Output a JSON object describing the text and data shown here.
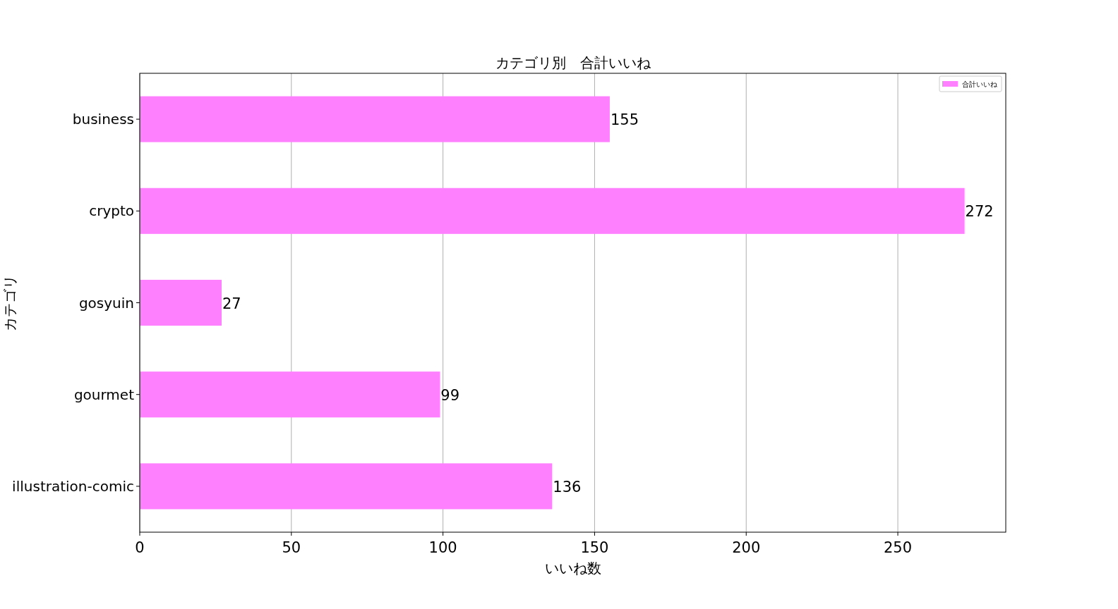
{
  "chart_data": {
    "type": "bar",
    "orientation": "horizontal",
    "title": "カテゴリ別　合計いいね",
    "xlabel": "いいね数",
    "ylabel": "カテゴリ",
    "categories": [
      "business",
      "crypto",
      "gosyuin",
      "gourmet",
      "illustration-comic"
    ],
    "series": [
      {
        "name": "合計いいね",
        "color": "#ff80ff",
        "values": [
          155,
          272,
          27,
          99,
          136
        ]
      }
    ],
    "xlim": [
      0,
      285.6
    ],
    "xticks": [
      0,
      50,
      100,
      150,
      200,
      250
    ],
    "grid": "x",
    "legend": "top right",
    "data_labels": true
  }
}
